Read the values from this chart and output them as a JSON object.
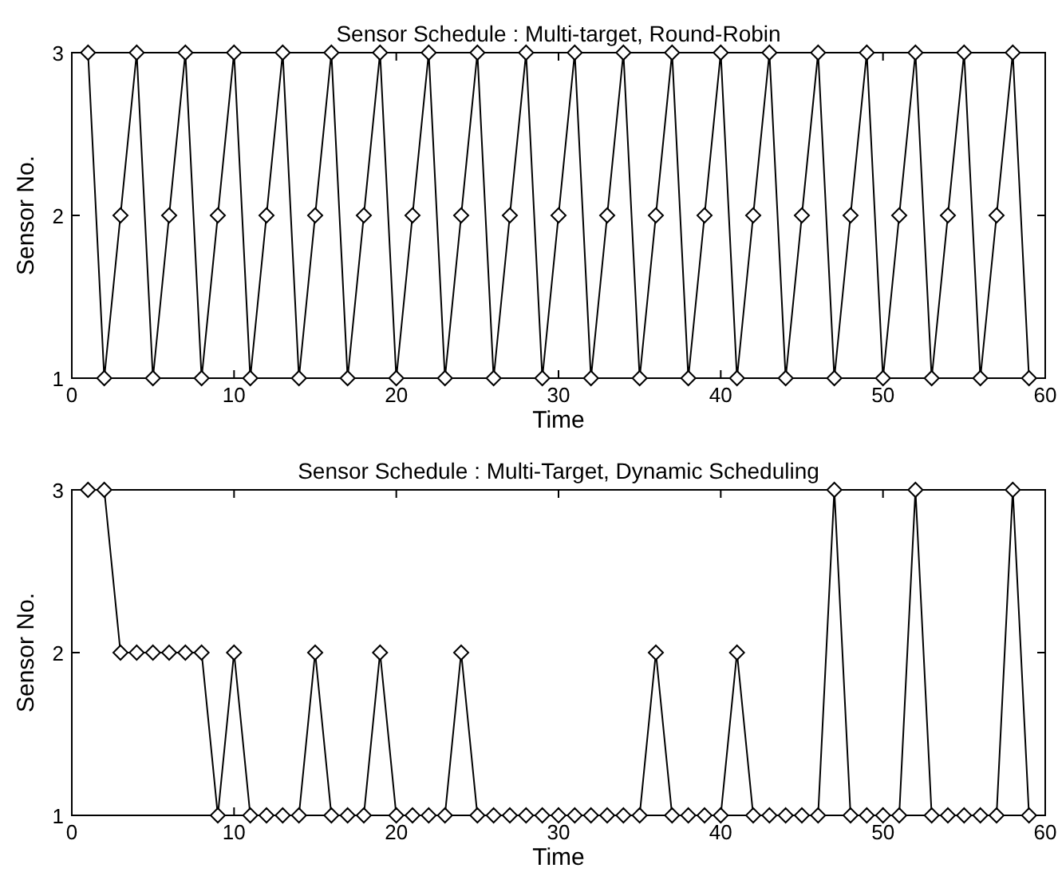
{
  "chart_data": [
    {
      "type": "line",
      "title": "Sensor Schedule : Multi-target, Round-Robin",
      "xlabel": "Time",
      "ylabel": "Sensor No.",
      "x": [
        1,
        2,
        3,
        4,
        5,
        6,
        7,
        8,
        9,
        10,
        11,
        12,
        13,
        14,
        15,
        16,
        17,
        18,
        19,
        20,
        21,
        22,
        23,
        24,
        25,
        26,
        27,
        28,
        29,
        30,
        31,
        32,
        33,
        34,
        35,
        36,
        37,
        38,
        39,
        40,
        41,
        42,
        43,
        44,
        45,
        46,
        47,
        48,
        49,
        50,
        51,
        52,
        53,
        54,
        55,
        56,
        57,
        58,
        59
      ],
      "series": [
        {
          "color": "#000000",
          "values": [
            3,
            1,
            2,
            3,
            1,
            2,
            3,
            1,
            2,
            3,
            1,
            2,
            3,
            1,
            2,
            3,
            1,
            2,
            3,
            1,
            2,
            3,
            1,
            2,
            3,
            1,
            2,
            3,
            1,
            2,
            3,
            1,
            2,
            3,
            1,
            2,
            3,
            1,
            2,
            3,
            1,
            2,
            3,
            1,
            2,
            3,
            1,
            2,
            3,
            1,
            2,
            3,
            1,
            2,
            3,
            1,
            2,
            3,
            1
          ]
        }
      ],
      "xlim": [
        0,
        60
      ],
      "xticks": [
        0,
        10,
        20,
        30,
        40,
        50,
        60
      ],
      "ylim": [
        1,
        3
      ],
      "yticks": [
        1,
        2,
        3
      ],
      "marker": "diamond",
      "line_style": "solid"
    },
    {
      "type": "line",
      "title": "Sensor Schedule : Multi-Target, Dynamic Scheduling",
      "xlabel": "Time",
      "ylabel": "Sensor No.",
      "x": [
        1,
        2,
        3,
        4,
        5,
        6,
        7,
        8,
        9,
        10,
        11,
        12,
        13,
        14,
        15,
        16,
        17,
        18,
        19,
        20,
        21,
        22,
        23,
        24,
        25,
        26,
        27,
        28,
        29,
        30,
        31,
        32,
        33,
        34,
        35,
        36,
        37,
        38,
        39,
        40,
        41,
        42,
        43,
        44,
        45,
        46,
        47,
        48,
        49,
        50,
        51,
        52,
        53,
        54,
        55,
        56,
        57,
        58,
        59
      ],
      "series": [
        {
          "color": "#000000",
          "values": [
            3,
            3,
            2,
            2,
            2,
            2,
            2,
            2,
            1,
            2,
            1,
            1,
            1,
            1,
            2,
            1,
            1,
            1,
            2,
            1,
            1,
            1,
            1,
            2,
            1,
            1,
            1,
            1,
            1,
            1,
            1,
            1,
            1,
            1,
            1,
            2,
            1,
            1,
            1,
            1,
            2,
            1,
            1,
            1,
            1,
            1,
            3,
            1,
            1,
            1,
            1,
            3,
            1,
            1,
            1,
            1,
            1,
            3,
            1
          ]
        }
      ],
      "xlim": [
        0,
        60
      ],
      "xticks": [
        0,
        10,
        20,
        30,
        40,
        50,
        60
      ],
      "ylim": [
        1,
        3
      ],
      "yticks": [
        1,
        2,
        3
      ],
      "marker": "diamond",
      "line_style": "solid"
    }
  ]
}
